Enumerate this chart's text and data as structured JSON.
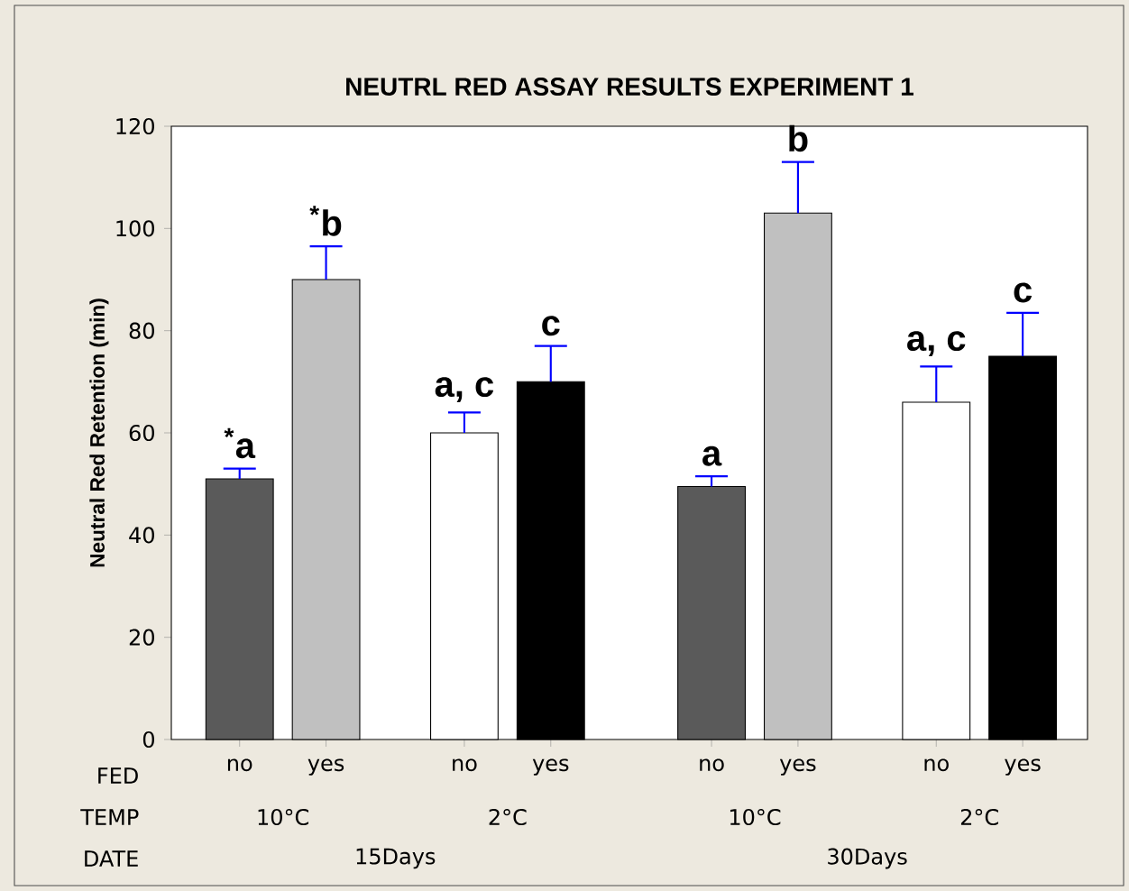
{
  "chart_data": {
    "type": "bar",
    "title": "NEUTRL RED ASSAY RESULTS EXPERIMENT 1",
    "ylabel": "Neutral Red Retention  (min)",
    "xlabel": "FED",
    "categories": [
      "no",
      "yes",
      "no",
      "yes",
      "no",
      "yes",
      "no",
      "yes"
    ],
    "values": [
      51,
      90,
      60,
      70,
      49.5,
      103,
      66,
      75
    ],
    "errors": [
      [
        51,
        53
      ],
      [
        90,
        96.5
      ],
      [
        60,
        64
      ],
      [
        70,
        77
      ],
      [
        49.5,
        51.5
      ],
      [
        103,
        113
      ],
      [
        66,
        73
      ],
      [
        75,
        83.5
      ]
    ],
    "colors": [
      "#5a5a5a",
      "#c0c0c0",
      "#ffffff",
      "#000000",
      "#5a5a5a",
      "#c0c0c0",
      "#ffffff",
      "#000000"
    ],
    "ylim": [
      0,
      120
    ],
    "yticks": [
      0,
      20,
      40,
      60,
      80,
      100,
      120
    ],
    "annotations": [
      "$^{*}$a",
      "$^{*}$b",
      "a, c",
      "c",
      "a",
      "b",
      "a, c",
      "c",
      "TEMP",
      "DATE",
      "10°C",
      "2°C",
      "10°C",
      "2°C",
      "15Days",
      "30Days"
    ]
  }
}
